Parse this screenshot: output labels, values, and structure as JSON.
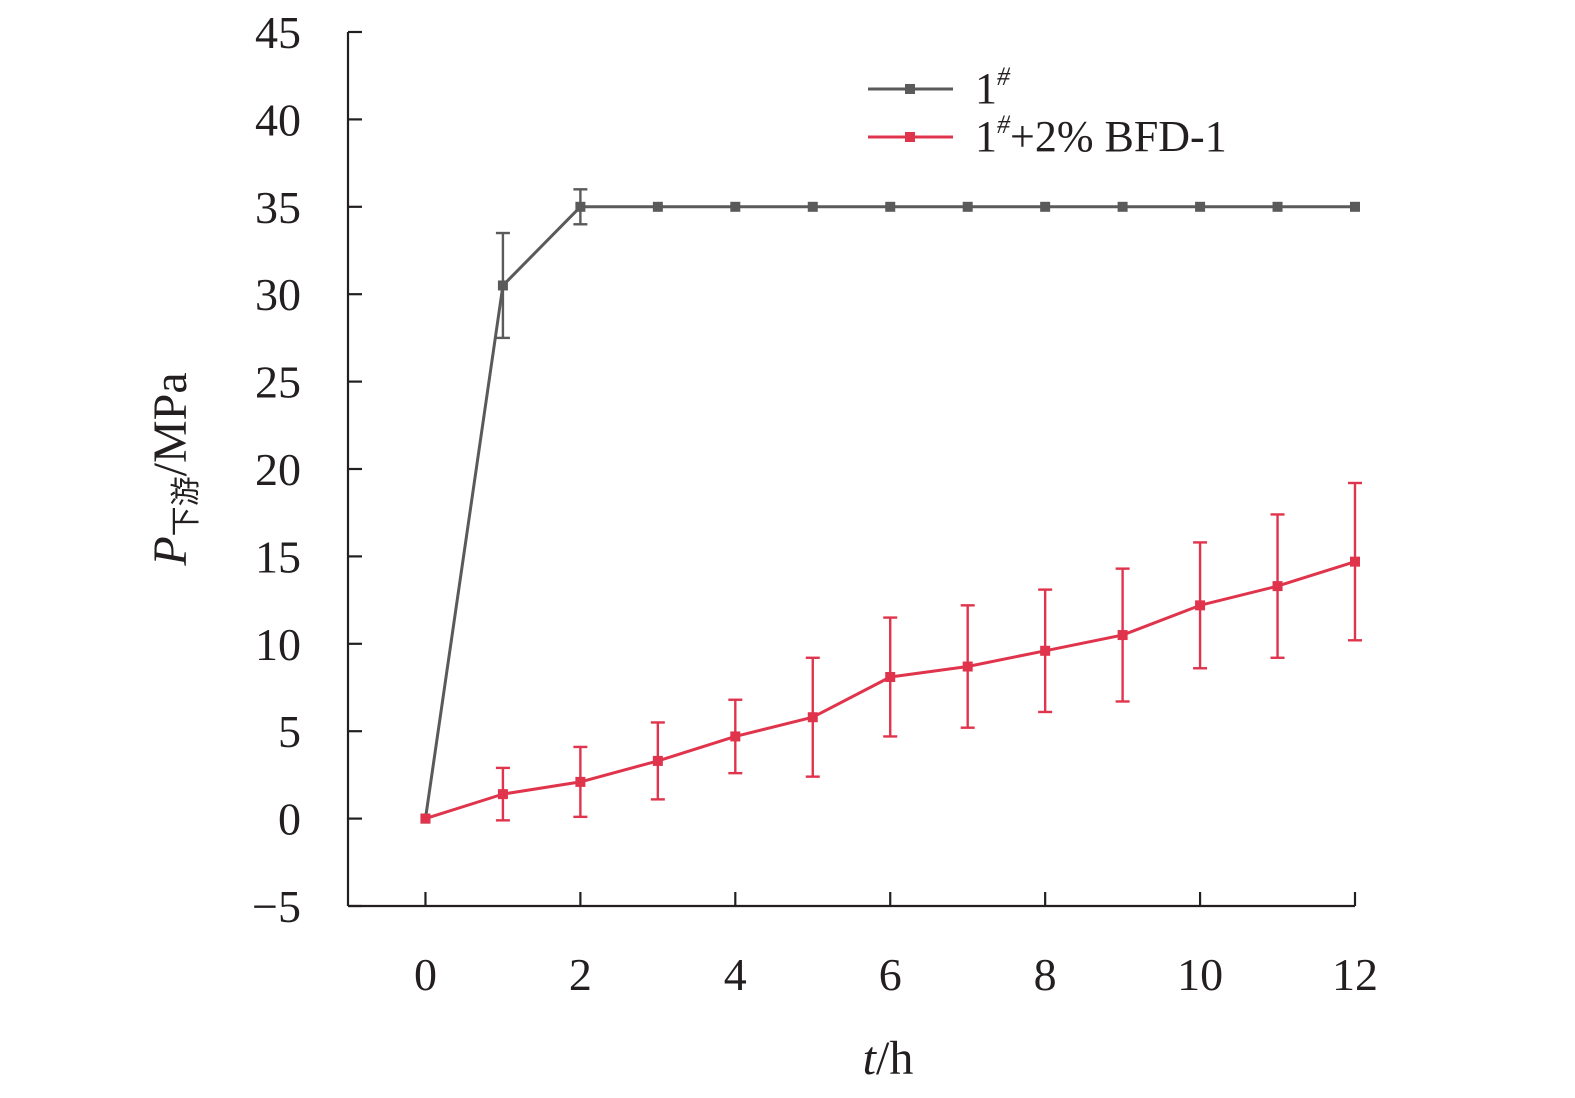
{
  "chart_data": {
    "type": "line",
    "title": "",
    "xlabel": {
      "italic": "t",
      "rest": "/h"
    },
    "ylabel": {
      "italic": "P",
      "subscript": "下游",
      "rest": "/MPa"
    },
    "xlim": [
      -1,
      12
    ],
    "ylim": [
      -5,
      45
    ],
    "xticks": [
      0,
      2,
      4,
      6,
      8,
      10,
      12
    ],
    "yticks": [
      -5,
      0,
      5,
      10,
      15,
      20,
      25,
      30,
      35,
      40,
      45
    ],
    "ytick_labels": [
      "−5",
      "0",
      "5",
      "10",
      "15",
      "20",
      "25",
      "30",
      "35",
      "40",
      "45"
    ],
    "grid": false,
    "legend_position": "top-right",
    "x": [
      0,
      1,
      2,
      3,
      4,
      5,
      6,
      7,
      8,
      9,
      10,
      11,
      12
    ],
    "series": [
      {
        "name_base": "1",
        "name_sup": "#",
        "name_rest": "",
        "color": "#5a5a5a",
        "values": [
          0,
          30.5,
          35,
          35,
          35,
          35,
          35,
          35,
          35,
          35,
          35,
          35,
          35
        ],
        "error": [
          0,
          3.0,
          1.0,
          0,
          0,
          0,
          0,
          0,
          0,
          0,
          0,
          0,
          0
        ]
      },
      {
        "name_base": "1",
        "name_sup": "#",
        "name_rest": "+2% BFD-1",
        "color": "#e0344c",
        "values": [
          0,
          1.4,
          2.1,
          3.3,
          4.7,
          5.8,
          8.1,
          8.7,
          9.6,
          10.5,
          12.2,
          13.3,
          14.7
        ],
        "error": [
          0,
          1.5,
          2.0,
          2.2,
          2.1,
          3.4,
          3.4,
          3.5,
          3.5,
          3.8,
          3.6,
          4.1,
          4.5
        ]
      }
    ]
  }
}
